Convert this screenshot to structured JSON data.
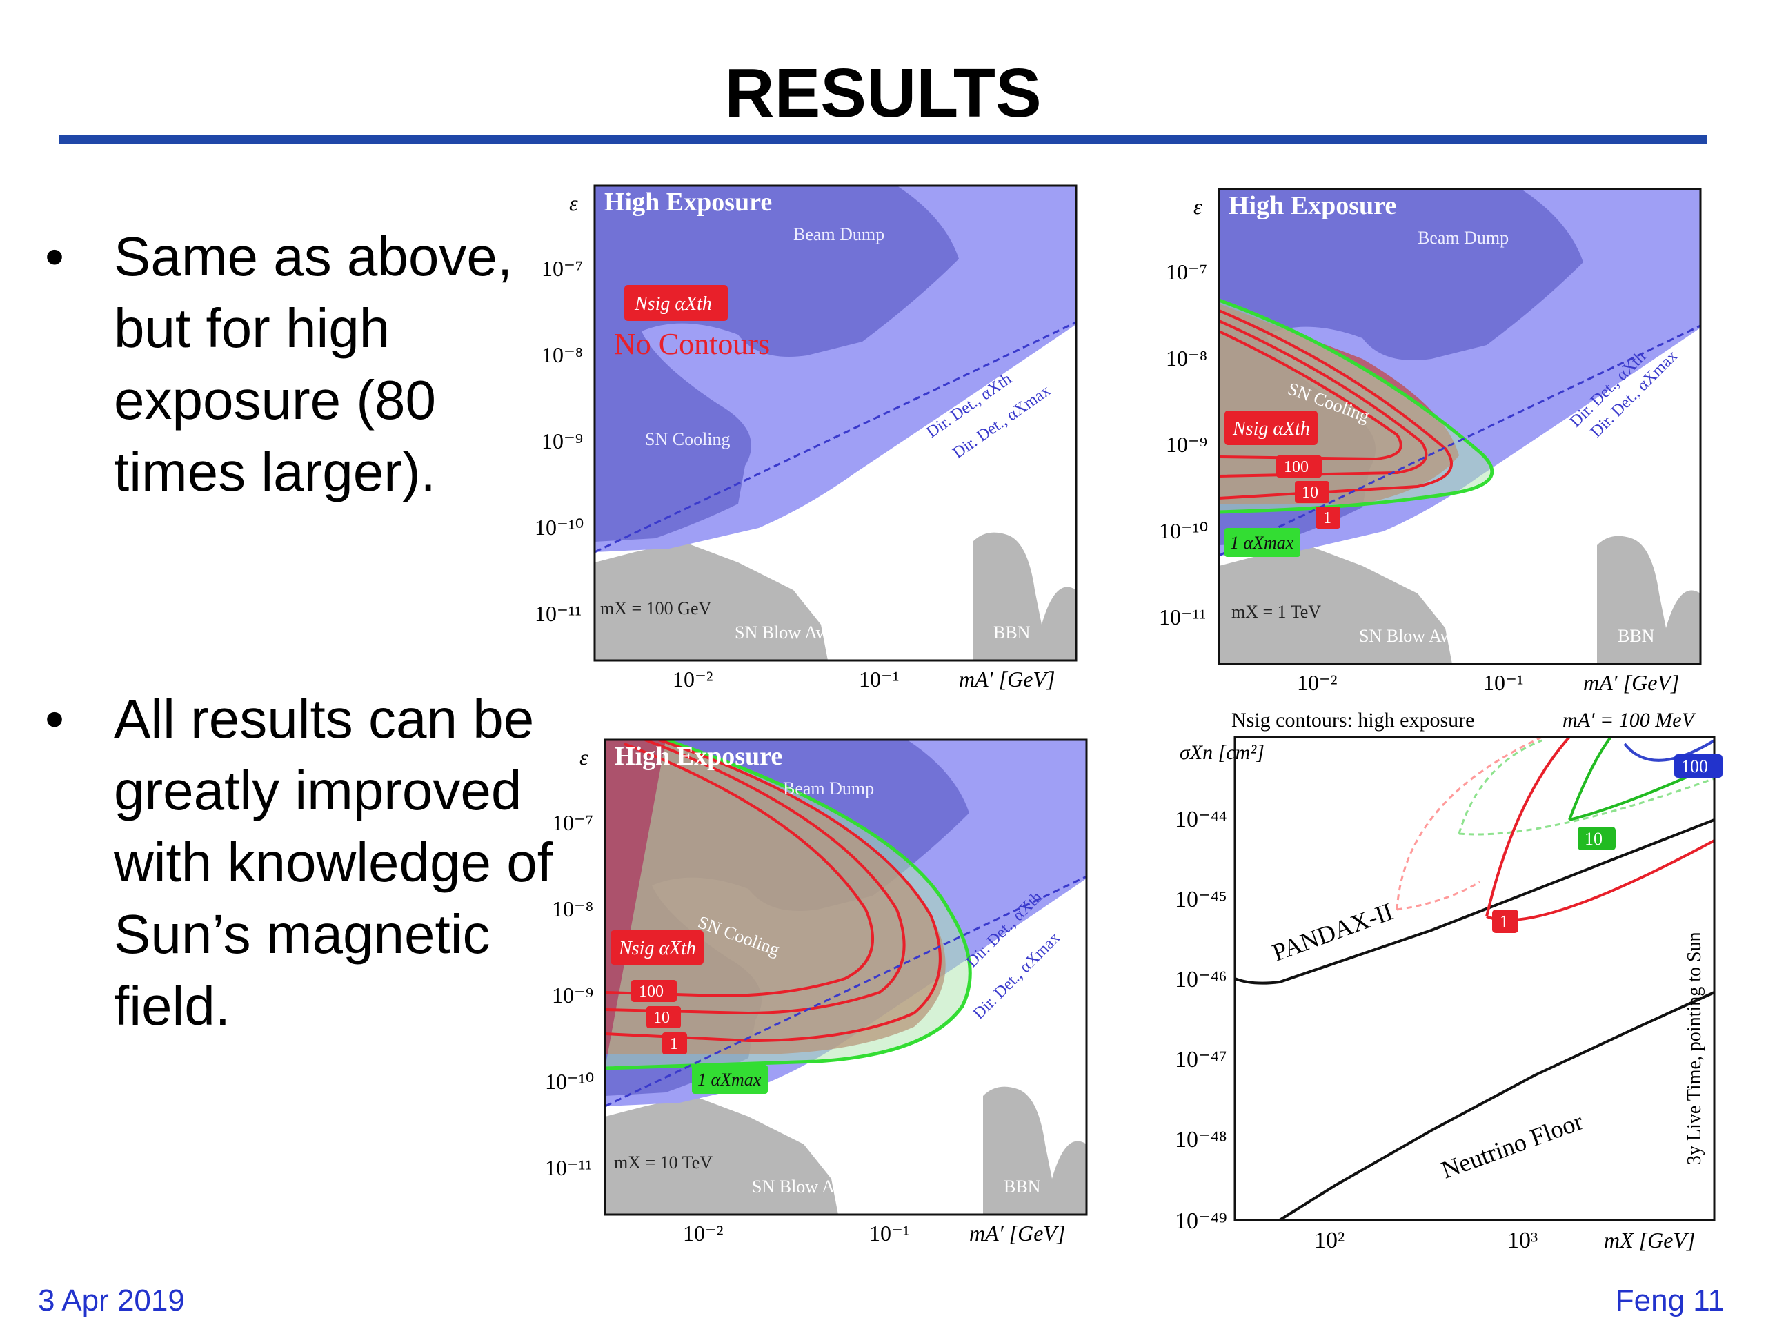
{
  "title": "RESULTS",
  "bullets": [
    {
      "symbol": "•",
      "text": "Same as above, but for high exposure (80 times larger)."
    },
    {
      "symbol": "•",
      "text": "All results can be greatly improved with knowledge of Sun’s magnetic field."
    }
  ],
  "footer": {
    "date": "3 Apr 2019",
    "page": "Feng 11"
  },
  "colors": {
    "rule": "#1f47a8",
    "footer": "#2233cc",
    "contour_red": "#e8202a",
    "green": "#33dd33",
    "blue_region": "#7f7fee"
  },
  "panels": {
    "p1": {
      "title": "High Exposure",
      "ylabel": "ε",
      "xlabel": "mA′ [GeV]",
      "yticks": [
        "10⁻⁷",
        "10⁻⁸",
        "10⁻⁹",
        "10⁻¹⁰",
        "10⁻¹¹"
      ],
      "xticks": [
        "10⁻²",
        "10⁻¹"
      ],
      "labels": {
        "beam_dump": "Beam Dump",
        "sn_cooling": "SN Cooling",
        "dir_det_th": "Dir. Det., αXth",
        "dir_det_max": "Dir. Det., αXmax",
        "mass": "mX = 100 GeV",
        "sn_blow": "SN Blow Away",
        "bbn": "BBN"
      },
      "box_label": "Nsig  αXth",
      "note": "No Contours"
    },
    "p2": {
      "title": "High Exposure",
      "ylabel": "ε",
      "xlabel": "mA′ [GeV]",
      "yticks": [
        "10⁻⁷",
        "10⁻⁸",
        "10⁻⁹",
        "10⁻¹⁰",
        "10⁻¹¹"
      ],
      "xticks": [
        "10⁻²",
        "10⁻¹"
      ],
      "labels": {
        "beam_dump": "Beam Dump",
        "sn_cooling": "SN Cooling",
        "dir_det_th": "Dir. Det., αXth",
        "dir_det_max": "Dir. Det., αXmax",
        "mass": "mX = 1 TeV",
        "sn_blow": "SN Blow Away",
        "bbn": "BBN"
      },
      "box_label": "Nsig  αXth",
      "contours": [
        "100",
        "10",
        "1"
      ],
      "green_label": "1 αXmax"
    },
    "p3": {
      "title": "High Exposure",
      "ylabel": "ε",
      "xlabel": "mA′ [GeV]",
      "yticks": [
        "10⁻⁷",
        "10⁻⁸",
        "10⁻⁹",
        "10⁻¹⁰",
        "10⁻¹¹"
      ],
      "xticks": [
        "10⁻²",
        "10⁻¹"
      ],
      "labels": {
        "beam_dump": "Beam Dump",
        "sn_cooling": "SN Cooling",
        "dir_det_th": "Dir. Det., αXth",
        "dir_det_max": "Dir. Det., αXmax",
        "mass": "mX = 10 TeV",
        "sn_blow": "SN Blow Away",
        "bbn": "BBN"
      },
      "box_label": "Nsig  αXth",
      "contours": [
        "100",
        "10",
        "1"
      ],
      "green_label": "1 αXmax"
    },
    "p4": {
      "header_left": "Nsig contours: high exposure",
      "header_right": "mA′ = 100 MeV",
      "ylabel": "σXn [cm²]",
      "yticks": [
        "10⁻⁴⁴",
        "10⁻⁴⁵",
        "10⁻⁴⁶",
        "10⁻⁴⁷",
        "10⁻⁴⁸",
        "10⁻⁴⁹"
      ],
      "xticks": [
        "10²",
        "10³"
      ],
      "xlabel": "mX [GeV]",
      "curve_labels": {
        "pandax": "PANDAX-II",
        "neutrino": "Neutrino Floor",
        "live_time": "3y Live Time, pointing to Sun"
      },
      "contours": [
        "100",
        "10",
        "1"
      ]
    }
  }
}
